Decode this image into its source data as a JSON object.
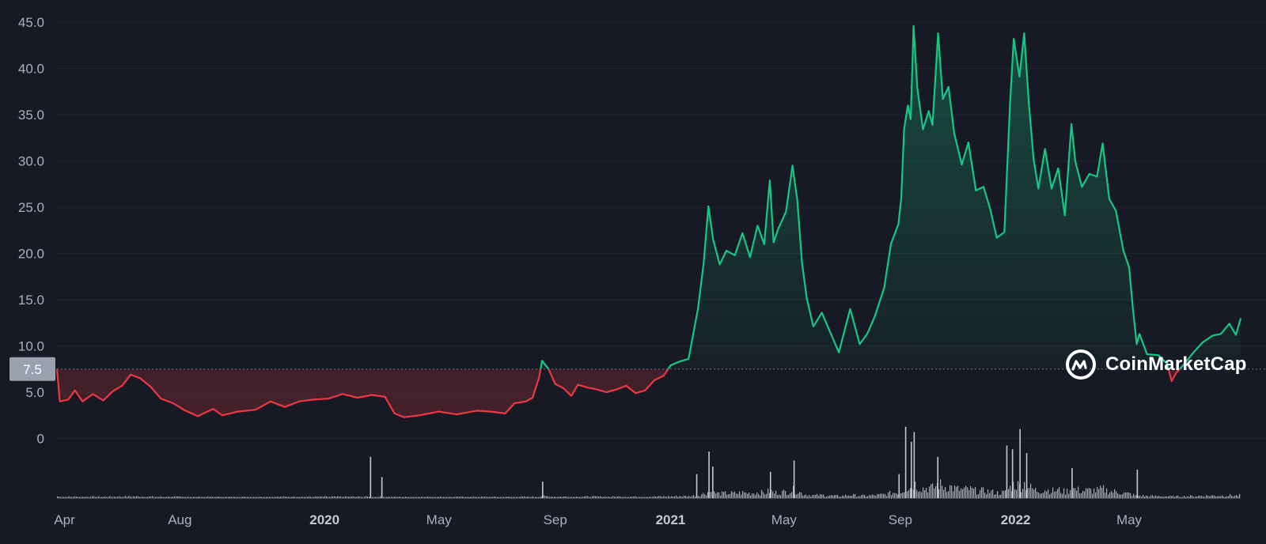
{
  "brand": {
    "name": "CoinMarketCap",
    "icon": "coinmarketcap-logo-icon"
  },
  "current_price_label": "7.5",
  "colors": {
    "up": "#16c784",
    "down": "#ea3943",
    "background": "#171924",
    "grid": "#222531",
    "volume": "#c5c8d0",
    "price_tag": "#9aa1ae"
  },
  "chart_data": {
    "type": "area",
    "title": "",
    "xlabel": "",
    "ylabel": "",
    "ylim": [
      0,
      45
    ],
    "baseline": 7.5,
    "yticks": [
      "0",
      "5.0",
      "10.0",
      "15.0",
      "20.0",
      "25.0",
      "30.0",
      "35.0",
      "40.0",
      "45.0"
    ],
    "xticks": [
      {
        "label": "Apr",
        "date": "2019-04-01",
        "bold": false
      },
      {
        "label": "Aug",
        "date": "2019-08-01",
        "bold": false
      },
      {
        "label": "2020",
        "date": "2020-01-01",
        "bold": true
      },
      {
        "label": "May",
        "date": "2020-05-01",
        "bold": false
      },
      {
        "label": "Sep",
        "date": "2020-09-01",
        "bold": false
      },
      {
        "label": "2021",
        "date": "2021-01-01",
        "bold": true
      },
      {
        "label": "May",
        "date": "2021-05-01",
        "bold": false
      },
      {
        "label": "Sep",
        "date": "2021-09-01",
        "bold": false
      },
      {
        "label": "2022",
        "date": "2022-01-01",
        "bold": true
      },
      {
        "label": "May",
        "date": "2022-05-01",
        "bold": false
      }
    ],
    "xrange": [
      "2019-03-24",
      "2022-08-27"
    ],
    "price": [
      [
        "2019-03-24",
        7.5
      ],
      [
        "2019-03-27",
        4.0
      ],
      [
        "2019-04-05",
        4.2
      ],
      [
        "2019-04-12",
        5.2
      ],
      [
        "2019-04-20",
        4.0
      ],
      [
        "2019-05-01",
        4.8
      ],
      [
        "2019-05-12",
        4.1
      ],
      [
        "2019-05-22",
        5.1
      ],
      [
        "2019-06-01",
        5.7
      ],
      [
        "2019-06-10",
        6.9
      ],
      [
        "2019-06-20",
        6.5
      ],
      [
        "2019-07-01",
        5.6
      ],
      [
        "2019-07-12",
        4.3
      ],
      [
        "2019-07-25",
        3.8
      ],
      [
        "2019-08-05",
        3.1
      ],
      [
        "2019-08-20",
        2.4
      ],
      [
        "2019-09-05",
        3.2
      ],
      [
        "2019-09-15",
        2.5
      ],
      [
        "2019-10-01",
        2.9
      ],
      [
        "2019-10-20",
        3.1
      ],
      [
        "2019-11-05",
        4.0
      ],
      [
        "2019-11-20",
        3.4
      ],
      [
        "2019-12-05",
        4.0
      ],
      [
        "2019-12-20",
        4.2
      ],
      [
        "2020-01-05",
        4.3
      ],
      [
        "2020-01-20",
        4.8
      ],
      [
        "2020-02-05",
        4.4
      ],
      [
        "2020-02-20",
        4.7
      ],
      [
        "2020-03-05",
        4.5
      ],
      [
        "2020-03-15",
        2.7
      ],
      [
        "2020-03-25",
        2.3
      ],
      [
        "2020-04-10",
        2.5
      ],
      [
        "2020-05-01",
        2.9
      ],
      [
        "2020-05-20",
        2.6
      ],
      [
        "2020-06-10",
        3.0
      ],
      [
        "2020-06-25",
        2.9
      ],
      [
        "2020-07-10",
        2.7
      ],
      [
        "2020-07-20",
        3.8
      ],
      [
        "2020-08-01",
        4.0
      ],
      [
        "2020-08-08",
        4.4
      ],
      [
        "2020-08-15",
        6.6
      ],
      [
        "2020-08-18",
        8.4
      ],
      [
        "2020-08-25",
        7.5
      ],
      [
        "2020-09-01",
        5.9
      ],
      [
        "2020-09-10",
        5.4
      ],
      [
        "2020-09-18",
        4.6
      ],
      [
        "2020-09-25",
        5.8
      ],
      [
        "2020-10-05",
        5.5
      ],
      [
        "2020-10-15",
        5.3
      ],
      [
        "2020-10-25",
        5.0
      ],
      [
        "2020-11-05",
        5.3
      ],
      [
        "2020-11-15",
        5.7
      ],
      [
        "2020-11-25",
        4.9
      ],
      [
        "2020-12-05",
        5.2
      ],
      [
        "2020-12-15",
        6.3
      ],
      [
        "2020-12-25",
        6.8
      ],
      [
        "2021-01-01",
        7.9
      ],
      [
        "2021-01-10",
        8.3
      ],
      [
        "2021-01-20",
        8.6
      ],
      [
        "2021-01-30",
        14.0
      ],
      [
        "2021-02-05",
        19.0
      ],
      [
        "2021-02-10",
        25.1
      ],
      [
        "2021-02-15",
        21.5
      ],
      [
        "2021-02-22",
        18.8
      ],
      [
        "2021-03-01",
        20.3
      ],
      [
        "2021-03-10",
        19.8
      ],
      [
        "2021-03-18",
        22.2
      ],
      [
        "2021-03-26",
        19.6
      ],
      [
        "2021-04-03",
        23.0
      ],
      [
        "2021-04-10",
        21.0
      ],
      [
        "2021-04-16",
        27.9
      ],
      [
        "2021-04-20",
        21.2
      ],
      [
        "2021-04-25",
        22.7
      ],
      [
        "2021-05-03",
        24.5
      ],
      [
        "2021-05-10",
        29.5
      ],
      [
        "2021-05-15",
        25.8
      ],
      [
        "2021-05-20",
        19.0
      ],
      [
        "2021-05-25",
        15.2
      ],
      [
        "2021-06-01",
        12.1
      ],
      [
        "2021-06-10",
        13.6
      ],
      [
        "2021-06-20",
        11.2
      ],
      [
        "2021-06-28",
        9.3
      ],
      [
        "2021-07-10",
        14.0
      ],
      [
        "2021-07-20",
        10.2
      ],
      [
        "2021-07-28",
        11.3
      ],
      [
        "2021-08-05",
        13.2
      ],
      [
        "2021-08-15",
        16.3
      ],
      [
        "2021-08-22",
        21.0
      ],
      [
        "2021-08-30",
        23.2
      ],
      [
        "2021-09-02",
        26.0
      ],
      [
        "2021-09-05",
        33.4
      ],
      [
        "2021-09-09",
        36.0
      ],
      [
        "2021-09-12",
        34.5
      ],
      [
        "2021-09-15",
        44.6
      ],
      [
        "2021-09-19",
        37.9
      ],
      [
        "2021-09-25",
        33.4
      ],
      [
        "2021-10-01",
        35.4
      ],
      [
        "2021-10-05",
        33.9
      ],
      [
        "2021-10-11",
        43.8
      ],
      [
        "2021-10-16",
        36.7
      ],
      [
        "2021-10-22",
        38.0
      ],
      [
        "2021-10-28",
        33.0
      ],
      [
        "2021-11-05",
        29.6
      ],
      [
        "2021-11-12",
        32.0
      ],
      [
        "2021-11-20",
        26.8
      ],
      [
        "2021-11-28",
        27.2
      ],
      [
        "2021-12-05",
        24.8
      ],
      [
        "2021-12-12",
        21.7
      ],
      [
        "2021-12-20",
        22.3
      ],
      [
        "2021-12-26",
        36.0
      ],
      [
        "2021-12-30",
        43.2
      ],
      [
        "2022-01-05",
        39.1
      ],
      [
        "2022-01-10",
        43.8
      ],
      [
        "2022-01-15",
        36.2
      ],
      [
        "2022-01-20",
        30.2
      ],
      [
        "2022-01-25",
        27.0
      ],
      [
        "2022-02-01",
        31.3
      ],
      [
        "2022-02-08",
        27.0
      ],
      [
        "2022-02-15",
        29.2
      ],
      [
        "2022-02-22",
        24.1
      ],
      [
        "2022-03-01",
        34.0
      ],
      [
        "2022-03-05",
        30.0
      ],
      [
        "2022-03-12",
        27.2
      ],
      [
        "2022-03-20",
        28.6
      ],
      [
        "2022-03-28",
        28.3
      ],
      [
        "2022-04-03",
        31.9
      ],
      [
        "2022-04-10",
        25.9
      ],
      [
        "2022-04-17",
        24.6
      ],
      [
        "2022-04-25",
        20.3
      ],
      [
        "2022-05-01",
        18.5
      ],
      [
        "2022-05-05",
        14.0
      ],
      [
        "2022-05-09",
        10.2
      ],
      [
        "2022-05-12",
        11.3
      ],
      [
        "2022-05-20",
        9.1
      ],
      [
        "2022-06-01",
        9.0
      ],
      [
        "2022-06-10",
        8.1
      ],
      [
        "2022-06-15",
        6.2
      ],
      [
        "2022-06-20",
        7.1
      ],
      [
        "2022-06-28",
        8.0
      ],
      [
        "2022-07-08",
        9.3
      ],
      [
        "2022-07-18",
        10.4
      ],
      [
        "2022-07-28",
        11.1
      ],
      [
        "2022-08-06",
        11.3
      ],
      [
        "2022-08-15",
        12.4
      ],
      [
        "2022-08-22",
        11.2
      ],
      [
        "2022-08-27",
        13.0
      ]
    ],
    "volume_spikes": [
      [
        "2020-02-18",
        0.55
      ],
      [
        "2020-03-01",
        0.28
      ],
      [
        "2020-08-18",
        0.22
      ],
      [
        "2021-01-28",
        0.32
      ],
      [
        "2021-02-10",
        0.62
      ],
      [
        "2021-02-14",
        0.42
      ],
      [
        "2021-04-16",
        0.35
      ],
      [
        "2021-05-11",
        0.5
      ],
      [
        "2021-08-30",
        0.32
      ],
      [
        "2021-09-06",
        0.95
      ],
      [
        "2021-09-12",
        0.75
      ],
      [
        "2021-09-15",
        0.88
      ],
      [
        "2021-10-10",
        0.55
      ],
      [
        "2021-12-22",
        0.7
      ],
      [
        "2021-12-28",
        0.65
      ],
      [
        "2022-01-05",
        0.92
      ],
      [
        "2022-01-12",
        0.6
      ],
      [
        "2022-03-01",
        0.4
      ],
      [
        "2022-05-09",
        0.38
      ]
    ]
  }
}
